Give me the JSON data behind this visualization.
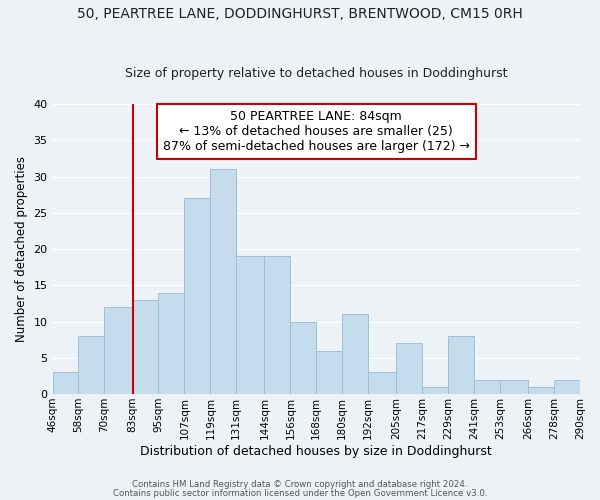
{
  "title_line1": "50, PEARTREE LANE, DODDINGHURST, BRENTWOOD, CM15 0RH",
  "title_line2": "Size of property relative to detached houses in Doddinghurst",
  "xlabel": "Distribution of detached houses by size in Doddinghurst",
  "ylabel": "Number of detached properties",
  "bar_heights": [
    3,
    8,
    12,
    13,
    14,
    27,
    31,
    19,
    19,
    10,
    6,
    11,
    3,
    7,
    1,
    8,
    2,
    2,
    1,
    2
  ],
  "bin_edges": [
    46,
    58,
    70,
    83,
    95,
    107,
    119,
    131,
    144,
    156,
    168,
    180,
    192,
    205,
    217,
    229,
    241,
    253,
    266,
    278,
    290
  ],
  "xlabels": [
    "46sqm",
    "58sqm",
    "70sqm",
    "83sqm",
    "95sqm",
    "107sqm",
    "119sqm",
    "131sqm",
    "144sqm",
    "156sqm",
    "168sqm",
    "180sqm",
    "192sqm",
    "205sqm",
    "217sqm",
    "229sqm",
    "241sqm",
    "253sqm",
    "266sqm",
    "278sqm",
    "290sqm"
  ],
  "bar_color": "#c5dced",
  "bar_edge_color": "#a0c0da",
  "ylim": [
    0,
    40
  ],
  "yticks": [
    0,
    5,
    10,
    15,
    20,
    25,
    30,
    35,
    40
  ],
  "annotation_text": "50 PEARTREE LANE: 84sqm\n← 13% of detached houses are smaller (25)\n87% of semi-detached houses are larger (172) →",
  "annotation_box_edgecolor": "#cc0000",
  "property_line_x": 83,
  "footer_line1": "Contains HM Land Registry data © Crown copyright and database right 2024.",
  "footer_line2": "Contains public sector information licensed under the Open Government Licence v3.0.",
  "background_color": "#edf2f7",
  "grid_color": "#ffffff"
}
